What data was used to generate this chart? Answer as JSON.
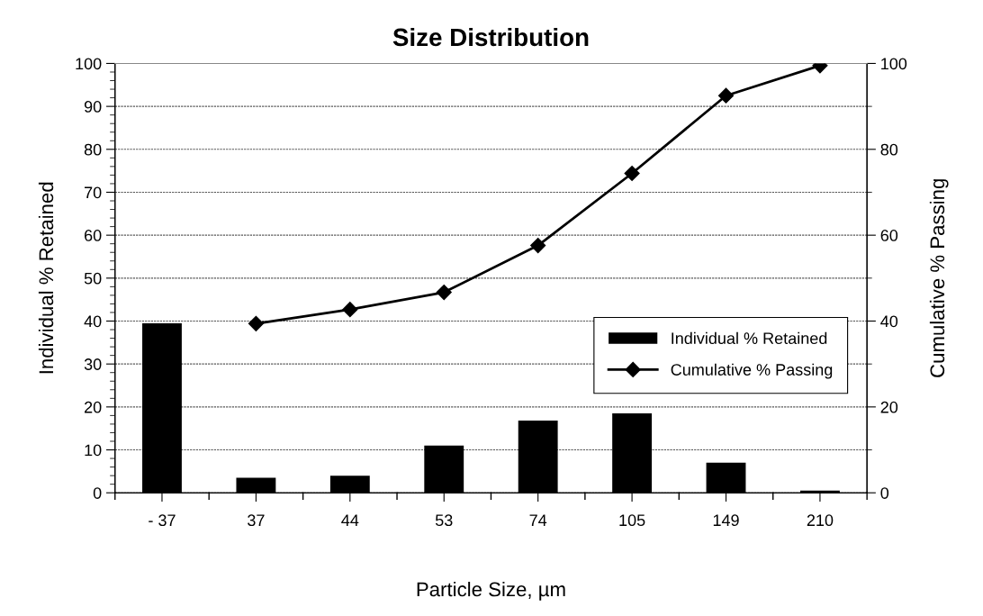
{
  "chart_data": {
    "type": "bar",
    "title": "Size Distribution",
    "xlabel": "Particle Size, µm",
    "ylabel": "Individual % Retained",
    "y2label": "Cumulative % Passing",
    "categories": [
      "- 37",
      "37",
      "44",
      "53",
      "74",
      "105",
      "149",
      "210"
    ],
    "series": [
      {
        "name": "Individual % Retained",
        "color": "#000000",
        "values": [
          39.5,
          3.5,
          4,
          11,
          16.8,
          18.5,
          7,
          0.5
        ]
      },
      {
        "name": "Cumulative % Passing",
        "type": "line",
        "axis": "y2",
        "color": "#000000",
        "marker": "diamond",
        "line_style": "solid",
        "values": [
          null,
          39.4,
          42.7,
          46.7,
          57.6,
          74.4,
          92.5,
          99.5
        ]
      }
    ],
    "ylim": [
      0,
      100
    ],
    "yticks": [
      0,
      10,
      20,
      30,
      40,
      50,
      60,
      70,
      80,
      90,
      100
    ],
    "y2lim": [
      0,
      100
    ],
    "y2ticks": [
      0,
      20,
      40,
      60,
      80,
      100
    ],
    "grid": "y",
    "legend": "right"
  }
}
